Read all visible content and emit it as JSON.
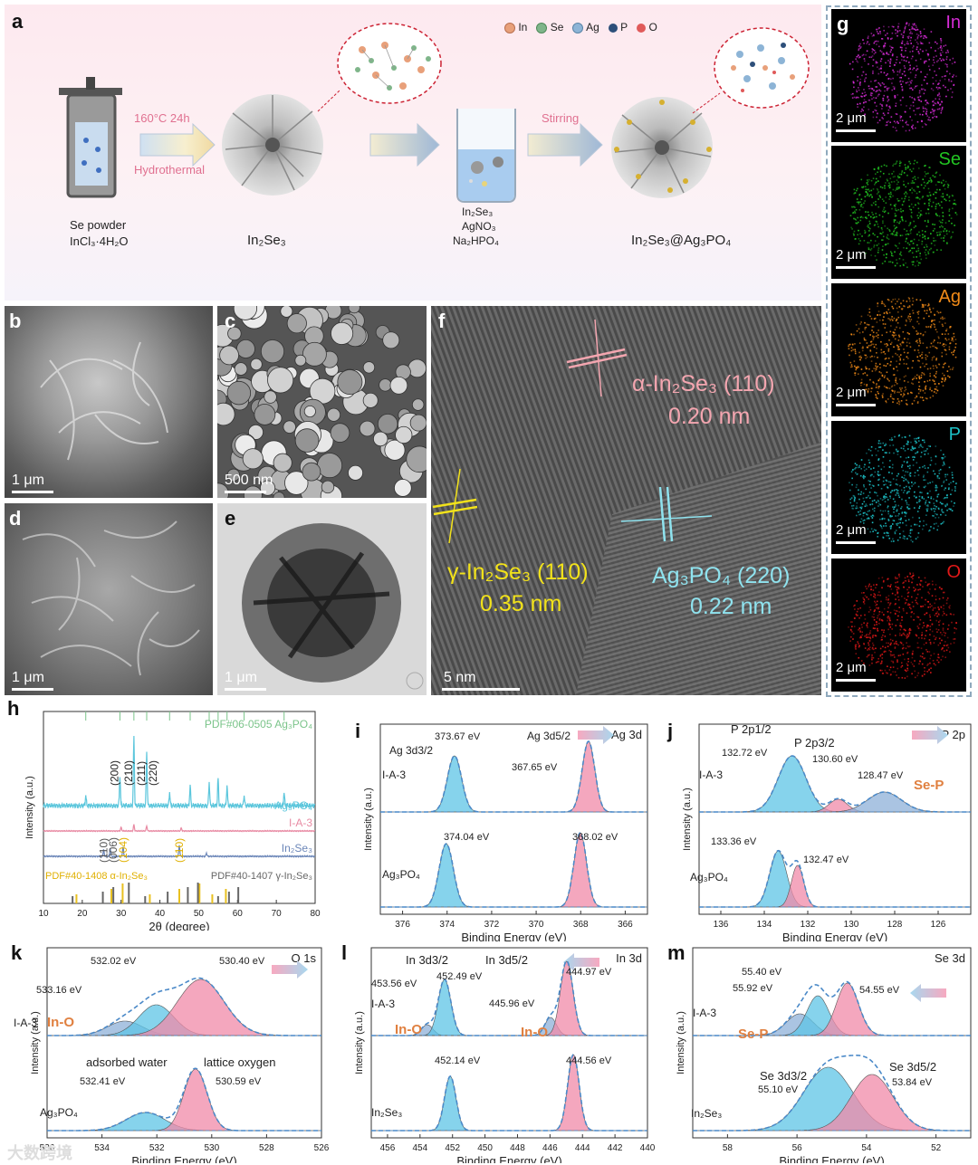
{
  "panel_a": {
    "label": "a",
    "legend": [
      {
        "text": "In",
        "color": "#e8a07a"
      },
      {
        "text": "Se",
        "color": "#7fb58a"
      },
      {
        "text": "Ag",
        "color": "#8db4d6"
      },
      {
        "text": "P",
        "color": "#2d4f7a"
      },
      {
        "text": "O",
        "color": "#e05a5a"
      }
    ],
    "conditions_top": "160°C  24h",
    "conditions_bottom": "Hydrothermal",
    "reagents_left": [
      "Se powder",
      "InCl₃·4H₂O"
    ],
    "product_1": "In₂Se₃",
    "stirring": "Stirring",
    "reagents_mid": [
      "In₂Se₃",
      "AgNO₃",
      "Na₂HPO₄"
    ],
    "product_2": "In₂Se₃@Ag₃PO₄"
  },
  "panel_b": {
    "label": "b",
    "scale": "1 μm"
  },
  "panel_c": {
    "label": "c",
    "scale": "500 nm"
  },
  "panel_d": {
    "label": "d",
    "scale": "1 μm"
  },
  "panel_e": {
    "label": "e",
    "scale": "1 μm"
  },
  "panel_f": {
    "label": "f",
    "scale": "5 nm",
    "alpha_label": "α-In₂Se₃ (110)",
    "alpha_d": "0.20 nm",
    "gamma_label": "γ-In₂Se₃ (110)",
    "gamma_d": "0.35 nm",
    "ag_label": "Ag₃PO₄ (220)",
    "ag_d": "0.22 nm"
  },
  "panel_g": {
    "label": "g",
    "maps": [
      {
        "element": "In",
        "scale": "2 μm",
        "color": "#d52bd5"
      },
      {
        "element": "Se",
        "scale": "2 μm",
        "color": "#22c522"
      },
      {
        "element": "Ag",
        "scale": "2 μm",
        "color": "#f08a18"
      },
      {
        "element": "P",
        "scale": "2 μm",
        "color": "#1cc2c8"
      },
      {
        "element": "O",
        "scale": "2 μm",
        "color": "#e01818"
      }
    ]
  },
  "chart_data": [
    {
      "panel": "h",
      "type": "line",
      "xlabel": "2θ (degree)",
      "ylabel": "Intensity (a.u.)",
      "xlim": [
        10,
        80
      ],
      "xticks": [
        10,
        20,
        30,
        40,
        50,
        60,
        70,
        80
      ],
      "series": [
        {
          "name": "Ag₃PO₄",
          "color": "#5bc6dc",
          "peaks": [
            [
              20.9,
              0.15
            ],
            [
              29.7,
              0.45
            ],
            [
              33.3,
              1.0
            ],
            [
              36.6,
              0.8
            ],
            [
              42.5,
              0.2
            ],
            [
              47.8,
              0.3
            ],
            [
              52.7,
              0.35
            ],
            [
              55.0,
              0.4
            ],
            [
              57.3,
              0.3
            ],
            [
              61.7,
              0.15
            ],
            [
              72.0,
              0.2
            ]
          ]
        },
        {
          "name": "I-A-3",
          "color": "#e88aa3",
          "peaks": [
            [
              30.0,
              0.3
            ],
            [
              33.3,
              0.5
            ],
            [
              36.6,
              0.4
            ],
            [
              45.5,
              0.25
            ]
          ]
        },
        {
          "name": "In₂Se₃",
          "color": "#6b86b8",
          "peaks": [
            [
              25.5,
              0.4
            ],
            [
              27.2,
              0.5
            ],
            [
              30.5,
              0.6
            ],
            [
              45.0,
              0.7
            ],
            [
              52.0,
              0.2
            ]
          ]
        }
      ],
      "reference_labels": [
        "PDF#06-0505 Ag₃PO₄",
        "PDF#40-1408 α-In₂Se₃",
        "PDF#40-1407 γ-In₂Se₃"
      ],
      "peak_labels_ag": [
        "(200)",
        "(210)",
        "(211)",
        "(220)"
      ],
      "peak_labels_in": [
        "(110)",
        "(006)",
        "(104)",
        "(110)"
      ],
      "ref_ag": [
        20.9,
        29.7,
        33.3,
        36.6,
        42.5,
        47.8,
        52.7,
        55.0,
        57.3,
        61.7,
        72.0
      ],
      "ref_alpha": [
        18.5,
        27.5,
        30.4,
        37.4,
        45.0,
        50.2,
        53.5,
        57.0
      ],
      "ref_gamma": [
        17.5,
        25.3,
        28.0,
        32.0,
        36.2,
        42.0,
        47.2,
        49.8,
        55.0,
        57.8,
        60.2
      ]
    },
    {
      "panel": "i",
      "type": "line",
      "title": "Ag 3d",
      "xlabel": "Binding Energy (eV)",
      "ylabel": "Intensity (a.u.)",
      "xlim": [
        377,
        365
      ],
      "xticks": [
        376,
        374,
        372,
        370,
        368,
        366
      ],
      "series": [
        {
          "name": "I-A-3",
          "peaks": [
            {
              "center": 373.67,
              "label": "373.67 eV",
              "name": "Ag 3d3/2",
              "color": "#5ec4e6"
            },
            {
              "center": 367.65,
              "label": "367.65 eV",
              "name": "Ag 3d5/2",
              "color": "#f08aa8"
            }
          ]
        },
        {
          "name": "Ag₃PO₄",
          "peaks": [
            {
              "center": 374.04,
              "label": "374.04 eV",
              "color": "#5ec4e6"
            },
            {
              "center": 368.02,
              "label": "368.02 eV",
              "color": "#f08aa8"
            }
          ]
        }
      ]
    },
    {
      "panel": "j",
      "type": "line",
      "title": "P 2p",
      "xlabel": "Binding Energy (eV)",
      "ylabel": "Intensity (a.u.)",
      "xlim": [
        137,
        124.5
      ],
      "xticks": [
        136,
        134,
        132,
        130,
        128,
        126
      ],
      "series": [
        {
          "name": "I-A-3",
          "peaks": [
            {
              "center": 132.72,
              "label": "132.72 eV",
              "name": "P 2p1/2",
              "color": "#5ec4e6"
            },
            {
              "center": 130.6,
              "label": "130.60 eV",
              "name": "P 2p3/2",
              "color": "#f08aa8"
            },
            {
              "center": 128.47,
              "label": "128.47 eV",
              "color": "#8db0d8"
            }
          ]
        },
        {
          "name": "Ag₃PO₄",
          "peaks": [
            {
              "center": 133.36,
              "label": "133.36 eV",
              "color": "#5ec4e6"
            },
            {
              "center": 132.47,
              "label": "132.47 eV",
              "color": "#f08aa8"
            }
          ]
        }
      ],
      "annotation": "Se-P"
    },
    {
      "panel": "k",
      "type": "line",
      "title": "O 1s",
      "xlabel": "Binding Energy (eV)",
      "ylabel": "Intensity (a.u.)",
      "xlim": [
        536,
        526
      ],
      "xticks": [
        536,
        534,
        532,
        530,
        528,
        526
      ],
      "series": [
        {
          "name": "I-A-3",
          "peaks": [
            {
              "center": 533.16,
              "label": "533.16 eV",
              "color": "#8db0d8"
            },
            {
              "center": 532.02,
              "label": "532.02 eV",
              "color": "#5ec4e6"
            },
            {
              "center": 530.4,
              "label": "530.40 eV",
              "color": "#f08aa8"
            }
          ]
        },
        {
          "name": "Ag₃PO₄",
          "peaks": [
            {
              "center": 532.41,
              "label": "532.41 eV",
              "name": "adsorbed water",
              "color": "#5ec4e6"
            },
            {
              "center": 530.59,
              "label": "530.59 eV",
              "name": "lattice oxygen",
              "color": "#f08aa8"
            }
          ]
        }
      ],
      "annotation": "In-O"
    },
    {
      "panel": "l",
      "type": "line",
      "title": "In 3d",
      "xlabel": "Binding Energy (eV)",
      "ylabel": "Intensity (a.u.)",
      "xlim": [
        457,
        440
      ],
      "xticks": [
        456,
        454,
        452,
        450,
        448,
        446,
        444,
        442,
        440
      ],
      "series": [
        {
          "name": "I-A-3",
          "peaks": [
            {
              "center": 453.56,
              "label": "453.56 eV",
              "color": "#8db0d8"
            },
            {
              "center": 452.49,
              "label": "452.49 eV",
              "name": "In 3d3/2",
              "color": "#5ec4e6"
            },
            {
              "center": 445.96,
              "label": "445.96 eV",
              "color": "#8db0d8"
            },
            {
              "center": 444.97,
              "label": "444.97 eV",
              "name": "In 3d5/2",
              "color": "#f08aa8"
            }
          ]
        },
        {
          "name": "In₂Se₃",
          "peaks": [
            {
              "center": 452.14,
              "label": "452.14 eV",
              "color": "#5ec4e6"
            },
            {
              "center": 444.56,
              "label": "444.56 eV",
              "color": "#f08aa8"
            }
          ]
        }
      ],
      "annotation": "In-O"
    },
    {
      "panel": "m",
      "type": "line",
      "title": "Se 3d",
      "xlabel": "Binding Energy (eV)",
      "ylabel": "Intensity (a.u.)",
      "xlim": [
        59,
        51
      ],
      "xticks": [
        58,
        56,
        54,
        52
      ],
      "series": [
        {
          "name": "I-A-3",
          "peaks": [
            {
              "center": 55.92,
              "label": "55.92 eV",
              "color": "#8db0d8"
            },
            {
              "center": 55.4,
              "label": "55.40 eV",
              "color": "#5ec4e6"
            },
            {
              "center": 54.55,
              "label": "54.55 eV",
              "color": "#f08aa8"
            }
          ]
        },
        {
          "name": "In₂Se₃",
          "peaks": [
            {
              "center": 55.1,
              "label": "55.10 eV",
              "name": "Se 3d3/2",
              "color": "#5ec4e6"
            },
            {
              "center": 53.84,
              "label": "53.84 eV",
              "name": "Se 3d5/2",
              "color": "#f08aa8"
            }
          ]
        }
      ],
      "annotation": "Se-P"
    }
  ],
  "watermark": "大数跨境"
}
